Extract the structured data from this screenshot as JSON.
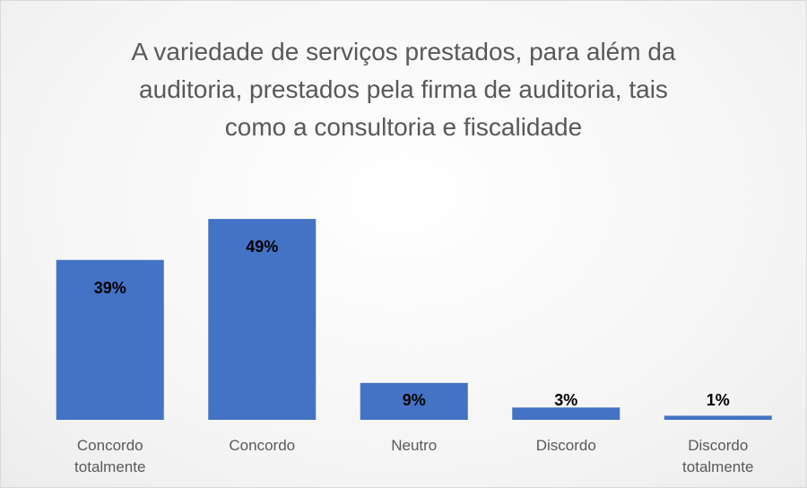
{
  "chart_data": {
    "type": "bar",
    "title": [
      "A variedade de serviços prestados, para além da",
      "auditoria, prestados pela firma de auditoria, tais",
      "como a consultoria e fiscalidade"
    ],
    "categories": [
      "Concordo totalmente",
      "Concordo",
      "Neutro",
      "Discordo",
      "Discordo totalmente"
    ],
    "values": [
      39,
      49,
      9,
      3,
      1
    ],
    "value_labels": [
      "39%",
      "49%",
      "9%",
      "3%",
      "1%"
    ],
    "color": "#4472c4"
  }
}
